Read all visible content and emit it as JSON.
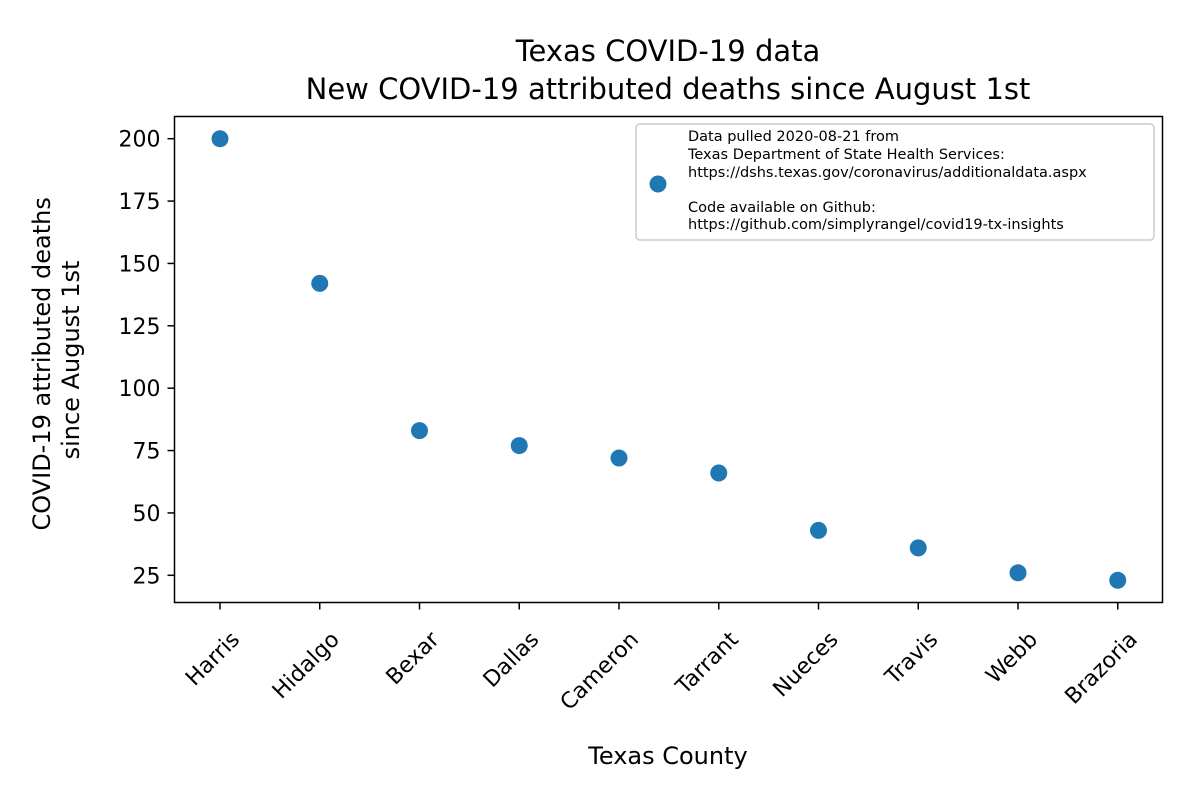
{
  "chart_data": {
    "type": "scatter",
    "title": "Texas COVID-19 data",
    "subtitle": "New COVID-19 attributed deaths since August 1st",
    "xlabel": "Texas County",
    "ylabel": [
      "COVID-19 attributed deaths",
      "since August 1st"
    ],
    "categories": [
      "Harris",
      "Hidalgo",
      "Bexar",
      "Dallas",
      "Cameron",
      "Tarrant",
      "Nueces",
      "Travis",
      "Webb",
      "Brazoria"
    ],
    "values": [
      200,
      142,
      83,
      77,
      72,
      66,
      43,
      36,
      26,
      23
    ],
    "ylim": [
      14.1,
      208.9
    ],
    "yticks": [
      25,
      50,
      75,
      100,
      125,
      150,
      175,
      200
    ],
    "marker_color": "#1f77b4",
    "grid": false,
    "legend": {
      "placement": "top-right",
      "lines": [
        "Data pulled 2020-08-21 from",
        "Texas Department of State Health Services:",
        "https://dshs.texas.gov/coronavirus/additionaldata.aspx",
        "",
        "Code available on Github:",
        "https://github.com/simplyrangel/covid19-tx-insights"
      ]
    }
  }
}
